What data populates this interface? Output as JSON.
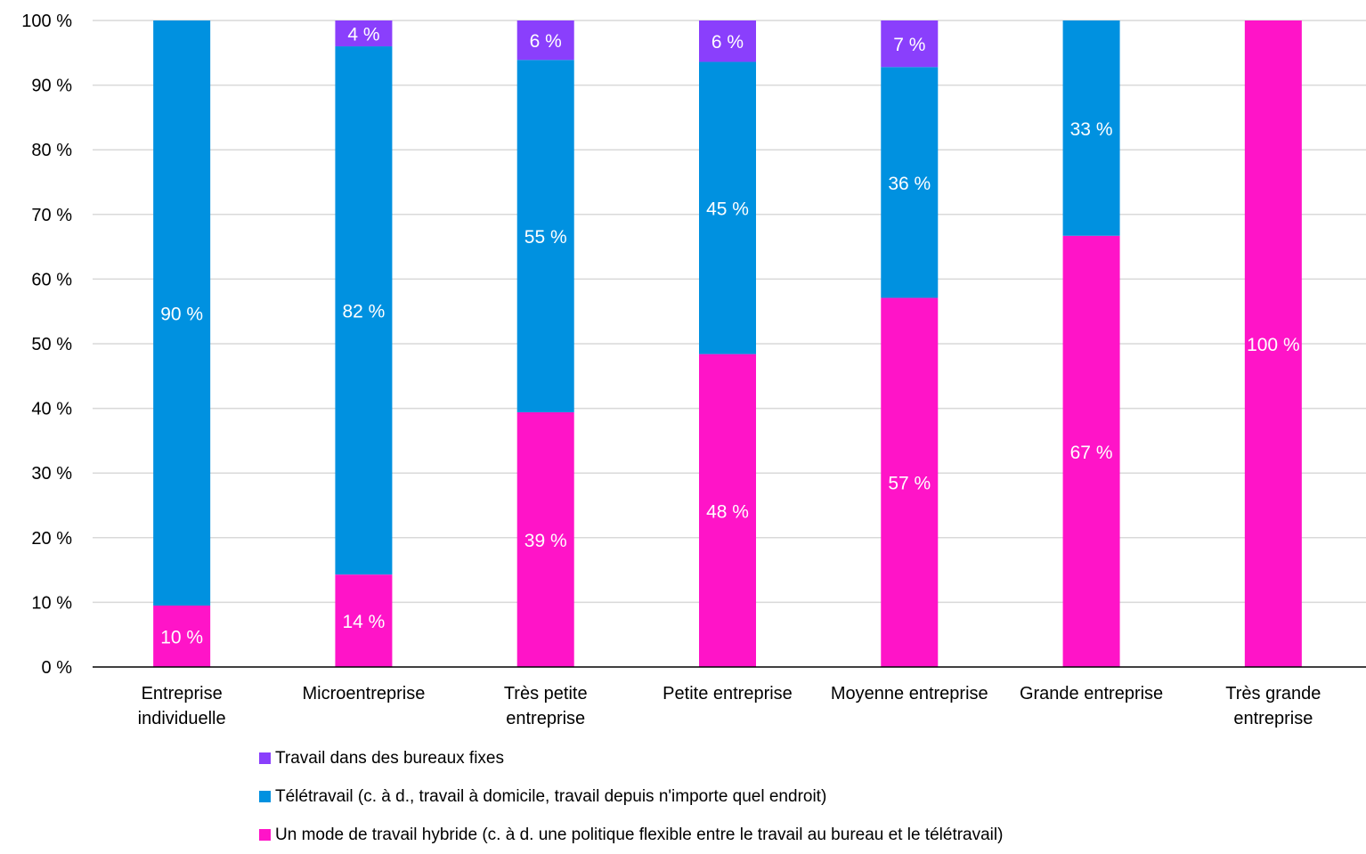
{
  "chart_data": {
    "type": "bar",
    "stacked": true,
    "categories": [
      [
        "Entreprise",
        "individuelle"
      ],
      [
        "Microentreprise"
      ],
      [
        "Très petite",
        "entreprise"
      ],
      [
        "Petite entreprise"
      ],
      [
        "Moyenne entreprise"
      ],
      [
        "Grande entreprise"
      ],
      [
        "Très grande",
        "entreprise"
      ]
    ],
    "series": [
      {
        "name": "Un mode de travail hybride (c. à d. une politique flexible entre le travail au bureau et le télétravail)",
        "color": "#ff14c8",
        "values": [
          9.5,
          14.3,
          39.4,
          48.4,
          57.1,
          66.7,
          100
        ],
        "labels": [
          "10 %",
          "14 %",
          "39 %",
          "48 %",
          "57 %",
          "67 %",
          "100 %"
        ]
      },
      {
        "name": "Télétravail (c. à d., travail à domicile, travail depuis n'importe quel endroit)",
        "color": "#0091e0",
        "values": [
          90.5,
          81.7,
          54.5,
          45.2,
          35.7,
          33.3,
          0
        ],
        "labels": [
          "90 %",
          "82 %",
          "55 %",
          "45 %",
          "36 %",
          "33 %",
          ""
        ]
      },
      {
        "name": "Travail dans des bureaux fixes",
        "color": "#8a3ffc",
        "values": [
          0,
          4.0,
          6.1,
          6.4,
          7.2,
          0,
          0
        ],
        "labels": [
          "",
          "4 %",
          "6 %",
          "6 %",
          "7 %",
          "",
          ""
        ]
      }
    ],
    "legend_order": [
      2,
      1,
      0
    ],
    "ylim": [
      0,
      100
    ],
    "yticks": [
      0,
      10,
      20,
      30,
      40,
      50,
      60,
      70,
      80,
      90,
      100
    ],
    "ytick_labels": [
      "0 %",
      "10 %",
      "20 %",
      "30 %",
      "40 %",
      "50 %",
      "60 %",
      "70 %",
      "80 %",
      "90 %",
      "100 %"
    ],
    "grid": true,
    "legend_position": "bottom",
    "title": "",
    "xlabel": "",
    "ylabel": ""
  }
}
